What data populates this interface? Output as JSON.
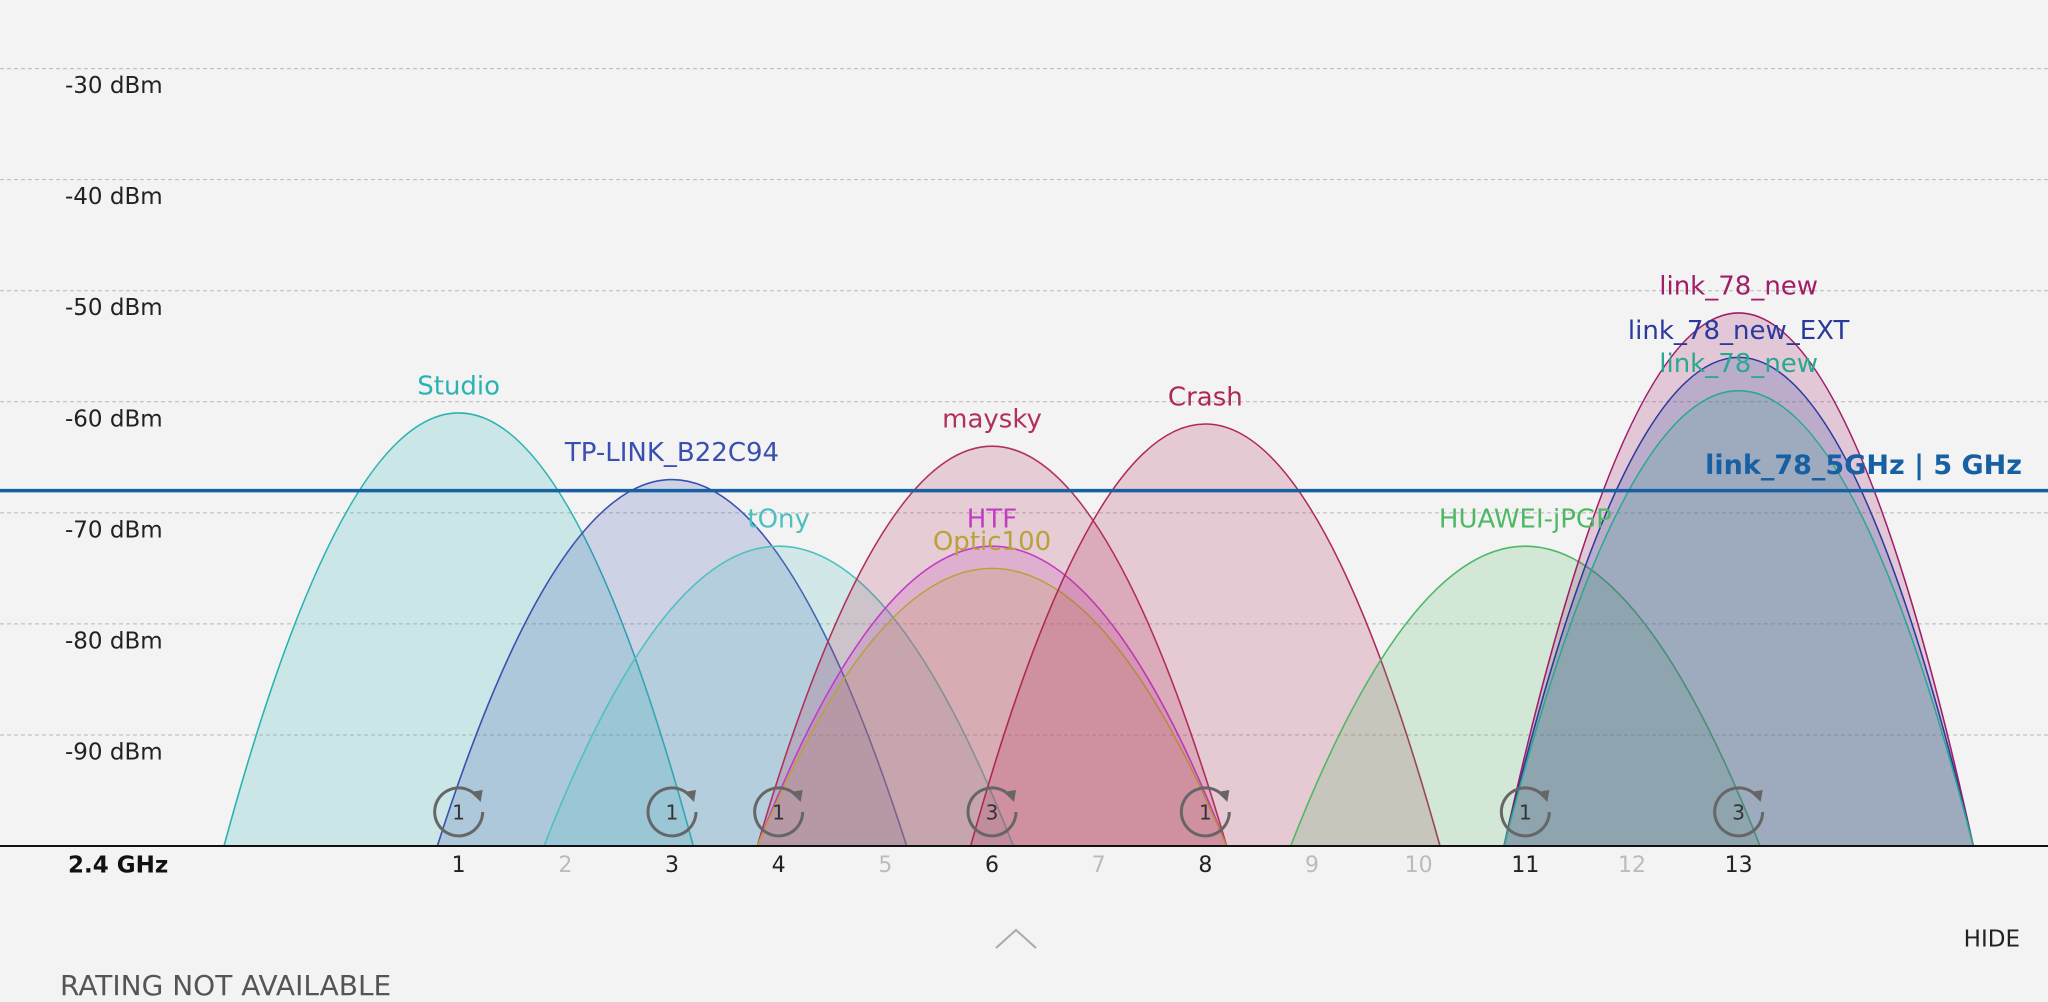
{
  "chart_data": {
    "type": "wifi-channel",
    "x_label": "2.4 GHz",
    "xlim": [
      -3.3,
      15.9
    ],
    "xticks": [
      1,
      2,
      3,
      4,
      5,
      6,
      7,
      8,
      9,
      10,
      11,
      12,
      13
    ],
    "ylim": [
      -100,
      -24
    ],
    "yticks": [
      {
        "value": -30,
        "label": "-30 dBm"
      },
      {
        "value": -40,
        "label": "-40 dBm"
      },
      {
        "value": -50,
        "label": "-50 dBm"
      },
      {
        "value": -60,
        "label": "-60 dBm"
      },
      {
        "value": -70,
        "label": "-70 dBm"
      },
      {
        "value": -80,
        "label": "-80 dBm"
      },
      {
        "value": -90,
        "label": "-90 dBm"
      }
    ],
    "grid": true,
    "networks": [
      {
        "name": "Studio",
        "channel": 1,
        "signal": -61,
        "color": "#2bb3b3"
      },
      {
        "name": "TP-LINK_B22C94",
        "channel": 3,
        "signal": -67,
        "color": "#3b4fae"
      },
      {
        "name": "tOny",
        "channel": 4,
        "signal": -73,
        "color": "#4fc0c0"
      },
      {
        "name": "maysky",
        "channel": 6,
        "signal": -64,
        "color": "#b2305c"
      },
      {
        "name": "HTF",
        "channel": 6,
        "signal": -73,
        "color": "#c23cc4"
      },
      {
        "name": "Optic100",
        "channel": 6,
        "signal": -75,
        "color": "#b9a23e"
      },
      {
        "name": "Crash",
        "channel": 8,
        "signal": -62,
        "color": "#b02858"
      },
      {
        "name": "HUAWEI-jPGP",
        "channel": 11,
        "signal": -73,
        "color": "#4fb865"
      },
      {
        "name": "link_78_new",
        "channel": 13,
        "signal": -52,
        "color": "#a01e68"
      },
      {
        "name": "link_78_new_EXT",
        "channel": 13,
        "signal": -56,
        "color": "#2a3a9c"
      },
      {
        "name": "link_78_new",
        "channel": 13,
        "signal": -59,
        "color": "#2aa890"
      }
    ],
    "channel_badges": {
      "channels": [
        1,
        3,
        4,
        6,
        8,
        11,
        13
      ],
      "counts": [
        1,
        1,
        1,
        3,
        1,
        1,
        3
      ]
    },
    "reference_line": {
      "label": "link_78_5GHz | 5 GHz",
      "value": -68,
      "color": "#1760a3"
    }
  },
  "footer": {
    "rating": "RATING NOT AVAILABLE",
    "hide": "HIDE"
  }
}
